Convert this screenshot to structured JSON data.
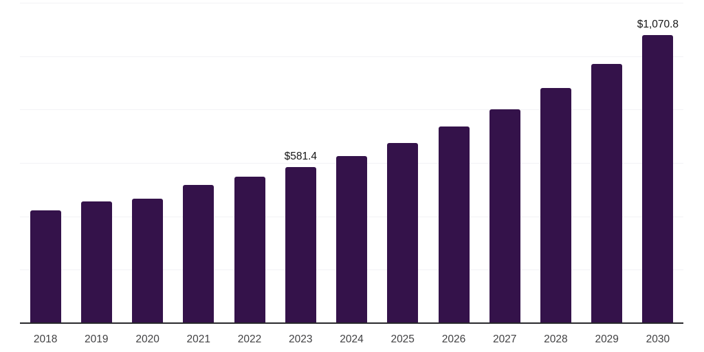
{
  "chart_data": {
    "type": "bar",
    "title": "",
    "xlabel": "",
    "ylabel": "",
    "categories": [
      "2018",
      "2019",
      "2020",
      "2021",
      "2022",
      "2023",
      "2024",
      "2025",
      "2026",
      "2027",
      "2028",
      "2029",
      "2030"
    ],
    "values": [
      420,
      453,
      463,
      514,
      545,
      581.4,
      622,
      670,
      732,
      796,
      875,
      964,
      1070.8
    ],
    "data_labels": {
      "2023": "$581.4",
      "2030": "$1,070.8"
    },
    "ylim": [
      0,
      1200
    ],
    "gridline_step": 200,
    "grid": true,
    "legend": false,
    "colors": {
      "bar": "#34124A",
      "gridline": "#f2f2f5",
      "axis_line": "#28282c",
      "tick_label": "#414143",
      "value_label": "#151515",
      "background": "#ffffff"
    }
  }
}
